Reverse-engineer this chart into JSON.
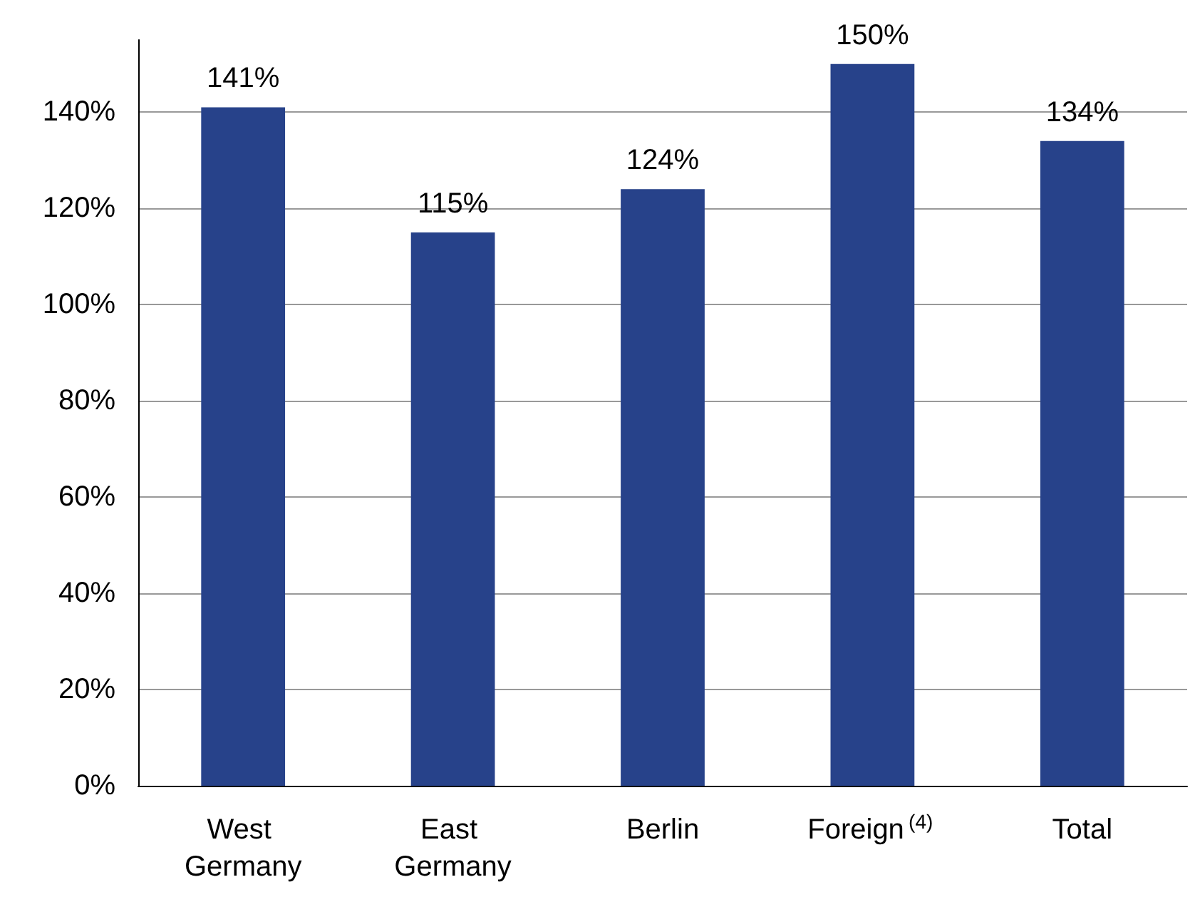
{
  "chart_data": {
    "type": "bar",
    "categories": [
      "West Germany",
      "East Germany",
      "Berlin",
      "Foreign$^{(4)}$",
      "Total"
    ],
    "values": [
      141,
      115,
      124,
      150,
      134
    ],
    "color": "#27428a",
    "value_labels": [
      "141%",
      "115%",
      "124%",
      "150%",
      "134%"
    ],
    "ylim": [
      0,
      155
    ],
    "yticks": [
      {
        "value": 0,
        "label": "0%"
      },
      {
        "value": 20,
        "label": "20%"
      },
      {
        "value": 40,
        "label": "40%"
      },
      {
        "value": 60,
        "label": "60%"
      },
      {
        "value": 80,
        "label": "80%"
      },
      {
        "value": 100,
        "label": "100%"
      },
      {
        "value": 120,
        "label": "120%"
      },
      {
        "value": 140,
        "label": "140%"
      }
    ],
    "grid": "y"
  }
}
